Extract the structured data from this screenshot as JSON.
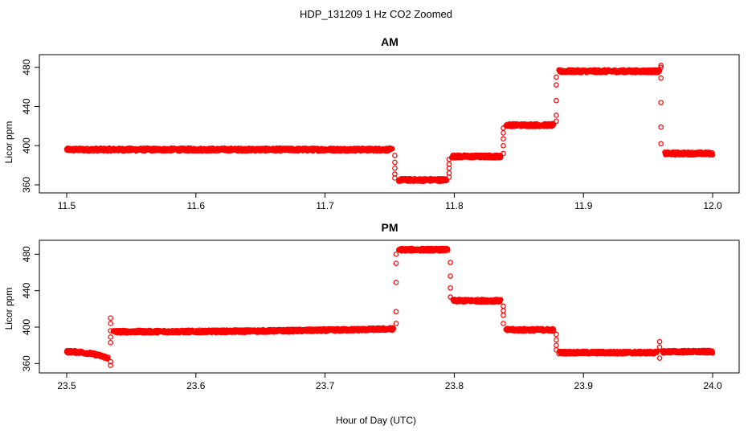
{
  "figure": {
    "title": "HDP_131209  1 Hz CO2 Zoomed",
    "xlabel": "Hour of Day (UTC)"
  },
  "colors": {
    "points": "#ff0000",
    "axes": "#000000",
    "background": "#ffffff"
  },
  "chart_data": [
    {
      "type": "scatter",
      "title": "AM",
      "ylabel": "Licor ppm",
      "xlim": [
        11.5,
        12.0
      ],
      "ylim": [
        360,
        488
      ],
      "xticks": [
        "11.5",
        "11.6",
        "11.7",
        "11.8",
        "11.9",
        "12.0"
      ],
      "yticks": [
        "360",
        "400",
        "440",
        "480"
      ],
      "grid": false,
      "marker": "open-circle",
      "series": [
        {
          "segments": [
            {
              "x_start": 11.5,
              "x_end": 11.752,
              "y": 396
            },
            {
              "x_start": 11.757,
              "x_end": 11.794,
              "y": 365
            },
            {
              "x_start": 11.798,
              "x_end": 11.836,
              "y": 389
            },
            {
              "x_start": 11.84,
              "x_end": 11.877,
              "y": 421
            },
            {
              "x_start": 11.881,
              "x_end": 11.959,
              "y": 476
            },
            {
              "x_start": 11.963,
              "x_end": 12.0,
              "y": 392
            }
          ],
          "transitions": [
            {
              "x": 11.754,
              "y": [
                390,
                383,
                377,
                371,
                367
              ]
            },
            {
              "x": 11.796,
              "y": [
                368,
                372,
                377,
                381,
                386
              ]
            },
            {
              "x": 11.838,
              "y": [
                392,
                400,
                407,
                413,
                418
              ]
            },
            {
              "x": 11.879,
              "y": [
                425,
                431,
                446,
                462,
                470
              ]
            },
            {
              "x": 11.96,
              "y": [
                482,
                480,
                469,
                444,
                419,
                402
              ]
            }
          ]
        }
      ]
    },
    {
      "type": "scatter",
      "title": "PM",
      "ylabel": "Licor ppm",
      "xlim": [
        23.5,
        24.0
      ],
      "ylim": [
        355,
        490
      ],
      "xticks": [
        "23.5",
        "23.6",
        "23.7",
        "23.8",
        "23.9",
        "24.0"
      ],
      "yticks": [
        "360",
        "400",
        "440",
        "480"
      ],
      "grid": false,
      "marker": "open-circle",
      "series": [
        {
          "segments": [
            {
              "x_start": 23.5,
              "x_end": 23.532,
              "y": 373,
              "y_end": 366
            },
            {
              "x_start": 23.536,
              "x_end": 23.753,
              "y": 395,
              "y_end": 398
            },
            {
              "x_start": 23.757,
              "x_end": 23.795,
              "y": 485
            },
            {
              "x_start": 23.799,
              "x_end": 23.836,
              "y": 429
            },
            {
              "x_start": 23.84,
              "x_end": 23.877,
              "y": 397
            },
            {
              "x_start": 23.881,
              "x_end": 23.957,
              "y": 372
            },
            {
              "x_start": 23.961,
              "x_end": 24.0,
              "y": 373
            }
          ],
          "transitions": [
            {
              "x": 23.534,
              "y": [
                358,
                362,
                383,
                389,
                396,
                404,
                410
              ]
            },
            {
              "x": 23.755,
              "y": [
                404,
                417,
                449,
                470,
                480
              ]
            },
            {
              "x": 23.797,
              "y": [
                471,
                456,
                443,
                433
              ]
            },
            {
              "x": 23.838,
              "y": [
                423,
                418,
                413,
                404
              ]
            },
            {
              "x": 23.879,
              "y": [
                392,
                386,
                380,
                375
              ]
            },
            {
              "x": 23.959,
              "y": [
                366,
                384,
                378
              ]
            }
          ]
        }
      ]
    }
  ]
}
